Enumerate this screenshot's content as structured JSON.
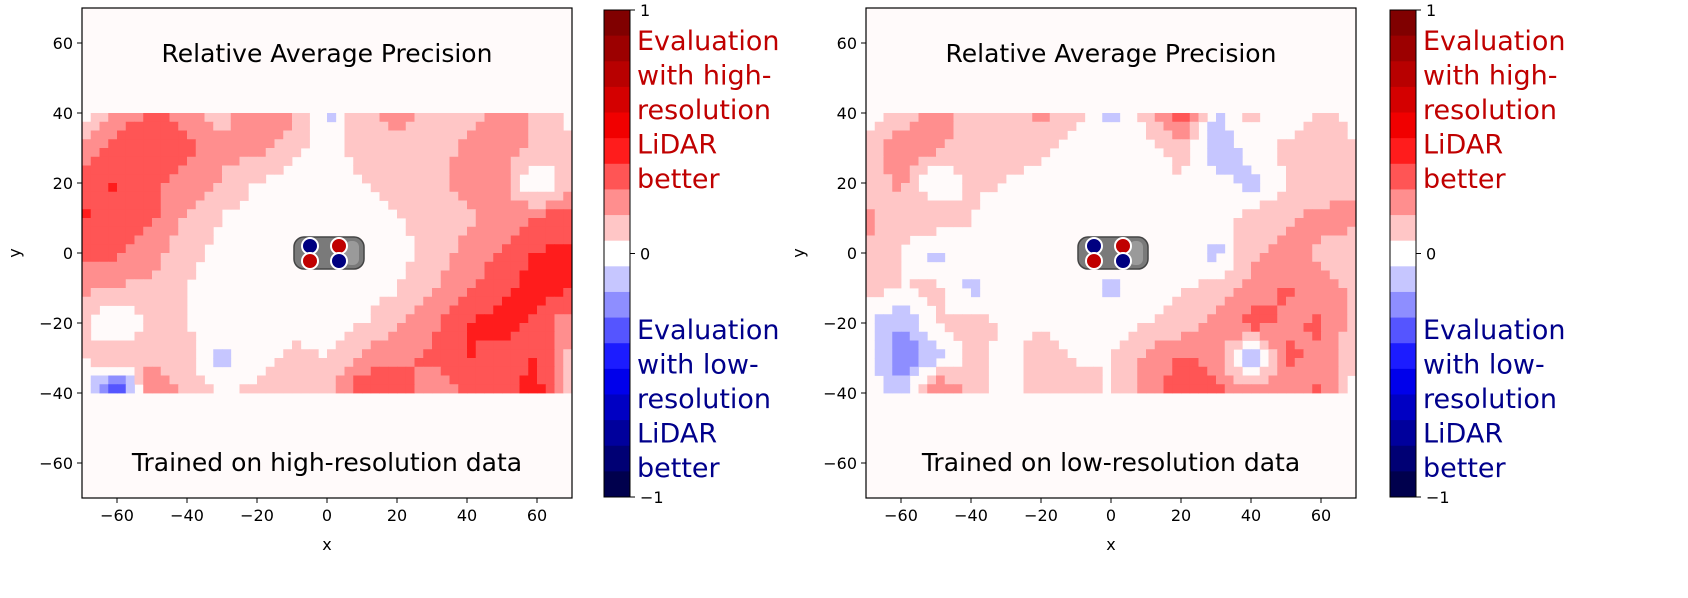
{
  "chart_data": [
    {
      "type": "heatmap",
      "title": "Relative Average Precision",
      "annotation": "Trained on high-resolution data",
      "xlabel": "x",
      "ylabel": "y",
      "xlim": [
        -70,
        70
      ],
      "ylim": [
        -70,
        70
      ],
      "xticks": [
        "−60",
        "−40",
        "−20",
        "0",
        "20",
        "40",
        "60"
      ],
      "yticks": [
        "60",
        "40",
        "20",
        "0",
        "−20",
        "−40",
        "−60"
      ],
      "colormap": "seismic",
      "colorbar": {
        "range": [
          -1,
          1
        ],
        "levels": 19,
        "ticks": [
          "1",
          "0",
          "−1"
        ],
        "positive_label": [
          "Evaluation",
          "with high-",
          "resolution",
          "LiDAR",
          "better"
        ],
        "negative_label": [
          "Evaluation",
          "with low-",
          "resolution",
          "LiDAR",
          "better"
        ],
        "positive_color": "#c00000",
        "negative_color": "#00008b"
      },
      "grid_x": [
        -70,
        -60,
        -50,
        -40,
        -30,
        -20,
        -10,
        0,
        10,
        20,
        30,
        40,
        50,
        60,
        70
      ],
      "grid_y": [
        40,
        30,
        20,
        10,
        0,
        -10,
        -20,
        -30,
        -40
      ],
      "values": [
        [
          0,
          0.2,
          0.3,
          0.25,
          0.1,
          0.3,
          0.2,
          -0.1,
          0.15,
          0.2,
          0.15,
          0.1,
          0.2,
          0.15,
          0
        ],
        [
          0.2,
          0.35,
          0.4,
          0.3,
          0.2,
          0.2,
          0.1,
          0,
          0.1,
          0.15,
          0.1,
          0.2,
          0.25,
          0.15,
          0.1
        ],
        [
          0.35,
          0.4,
          0.3,
          0.25,
          0.15,
          0.05,
          0,
          0,
          0.05,
          0.1,
          0.15,
          0.2,
          0.2,
          -0.1,
          0.15
        ],
        [
          0.4,
          0.35,
          0.3,
          0.15,
          0.05,
          0,
          0,
          -0.05,
          0,
          0.05,
          0.1,
          0.15,
          0.2,
          0.3,
          0.35
        ],
        [
          0.3,
          0.3,
          0.2,
          0.1,
          0,
          0,
          0.05,
          0,
          0,
          0,
          0.1,
          0.2,
          0.3,
          0.4,
          0.4
        ],
        [
          0.2,
          0.15,
          0.15,
          0.05,
          0,
          0,
          0,
          0,
          0,
          0.05,
          0.15,
          0.25,
          0.35,
          0.45,
          0.4
        ],
        [
          0.1,
          -0.1,
          0.1,
          0.05,
          0.05,
          -0.05,
          0,
          0,
          0.05,
          0.15,
          0.25,
          0.4,
          0.45,
          0.35,
          0.2
        ],
        [
          0.05,
          0.2,
          0.15,
          0.1,
          -0.1,
          0,
          0.1,
          0.05,
          0.2,
          0.25,
          0.3,
          0.4,
          0.3,
          0.4,
          0.1
        ],
        [
          0,
          -0.5,
          0.3,
          0.1,
          0.05,
          0.1,
          0.15,
          0.1,
          0.4,
          0.35,
          0.2,
          0.3,
          0.35,
          0.45,
          0
        ]
      ]
    },
    {
      "type": "heatmap",
      "title": "Relative Average Precision",
      "annotation": "Trained on low-resolution data",
      "xlabel": "x",
      "ylabel": "y",
      "xlim": [
        -70,
        70
      ],
      "ylim": [
        -70,
        70
      ],
      "xticks": [
        "−60",
        "−40",
        "−20",
        "0",
        "20",
        "40",
        "60"
      ],
      "yticks": [
        "60",
        "40",
        "20",
        "0",
        "−20",
        "−40",
        "−60"
      ],
      "colormap": "seismic",
      "colorbar": {
        "range": [
          -1,
          1
        ],
        "levels": 19,
        "ticks": [
          "1",
          "0",
          "−1"
        ],
        "positive_label": [
          "Evaluation",
          "with high-",
          "resolution",
          "LiDAR",
          "better"
        ],
        "negative_label": [
          "Evaluation",
          "with low-",
          "resolution",
          "LiDAR",
          "better"
        ],
        "positive_color": "#c00000",
        "negative_color": "#00008b"
      },
      "grid_x": [
        -70,
        -60,
        -50,
        -40,
        -30,
        -20,
        -10,
        0,
        10,
        20,
        30,
        40,
        50,
        60,
        70
      ],
      "grid_y": [
        40,
        30,
        20,
        10,
        0,
        -10,
        -20,
        -30,
        -40
      ],
      "values": [
        [
          0,
          0.1,
          0.2,
          0.15,
          0.1,
          0.2,
          0.1,
          -0.1,
          0.1,
          0.4,
          -0.1,
          0.1,
          -0.1,
          0.1,
          0
        ],
        [
          0.1,
          0.25,
          0.2,
          0.1,
          0.1,
          0.1,
          0,
          0.05,
          0,
          0.1,
          -0.15,
          0,
          0.1,
          0.15,
          0.05
        ],
        [
          0.1,
          0.2,
          -0.1,
          0.1,
          0.05,
          0,
          0,
          0,
          0,
          0.05,
          0,
          -0.1,
          0.05,
          0.1,
          0.15
        ],
        [
          0.2,
          0.1,
          0.15,
          0.05,
          -0.05,
          0,
          0,
          0,
          0,
          0,
          0,
          0.1,
          0.15,
          0.2,
          0.2
        ],
        [
          0.15,
          0.05,
          -0.1,
          0.05,
          0,
          0,
          0,
          0,
          0,
          0,
          -0.1,
          0.15,
          0.2,
          0.15,
          0.1
        ],
        [
          0.1,
          0.05,
          0.1,
          -0.1,
          0,
          0,
          0,
          -0.1,
          0,
          0.05,
          0.1,
          0.2,
          0.3,
          0.2,
          0.15
        ],
        [
          -0.05,
          -0.15,
          0.05,
          0.1,
          0.05,
          0.05,
          0,
          0,
          0.05,
          0.1,
          0.2,
          0.35,
          0.25,
          0.3,
          0.1
        ],
        [
          0.05,
          -0.3,
          -0.1,
          0.1,
          0,
          0.1,
          0.05,
          0.05,
          0.2,
          0.3,
          0.25,
          -0.2,
          0.3,
          0.25,
          0.05
        ],
        [
          0,
          -0.1,
          0.35,
          0.1,
          0,
          0.15,
          0.1,
          0.05,
          0.2,
          0.35,
          0.3,
          0.25,
          0.2,
          0.3,
          0
        ]
      ]
    }
  ]
}
